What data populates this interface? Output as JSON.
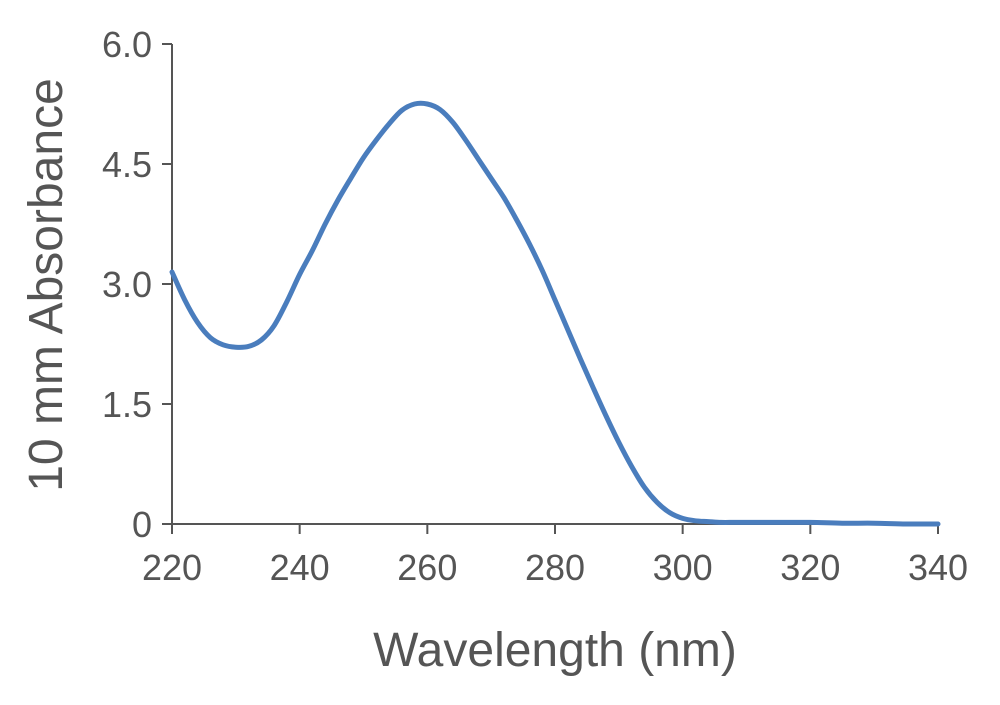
{
  "chart_data": {
    "type": "line",
    "title": "",
    "xlabel": "Wavelength (nm)",
    "ylabel": "10 mm Absorbance",
    "xlim": [
      220,
      340
    ],
    "ylim": [
      0,
      6.0
    ],
    "x_ticks": [
      220,
      240,
      260,
      280,
      300,
      320,
      340
    ],
    "x_tick_labels": [
      "220",
      "240",
      "260",
      "280",
      "300",
      "320",
      "340"
    ],
    "y_ticks": [
      0,
      1.5,
      3.0,
      4.5,
      6.0
    ],
    "y_tick_labels": [
      "0",
      "1.5",
      "3.0",
      "4.5",
      "6.0"
    ],
    "grid": false,
    "legend": "none",
    "colors": {
      "series": "#4a7dbd",
      "axis": "#555555",
      "text": "#555555"
    },
    "series": [
      {
        "x": [
          220,
          222,
          224,
          226,
          228,
          230,
          232,
          234,
          236,
          238,
          240,
          242,
          244,
          246,
          248,
          250,
          252,
          254,
          256,
          258,
          260,
          262,
          264,
          266,
          268,
          270,
          272,
          274,
          276,
          278,
          280,
          282,
          284,
          286,
          288,
          290,
          292,
          294,
          296,
          298,
          300,
          302,
          304,
          306,
          308,
          310,
          315,
          320,
          325,
          330,
          335,
          340
        ],
        "y": [
          3.15,
          2.8,
          2.52,
          2.33,
          2.24,
          2.21,
          2.22,
          2.3,
          2.48,
          2.78,
          3.12,
          3.42,
          3.75,
          4.05,
          4.32,
          4.58,
          4.8,
          5.0,
          5.17,
          5.25,
          5.25,
          5.18,
          5.02,
          4.8,
          4.56,
          4.32,
          4.08,
          3.8,
          3.5,
          3.17,
          2.8,
          2.43,
          2.06,
          1.7,
          1.35,
          1.02,
          0.72,
          0.46,
          0.27,
          0.14,
          0.07,
          0.04,
          0.03,
          0.02,
          0.02,
          0.02,
          0.02,
          0.02,
          0.01,
          0.01,
          0.0,
          0.0
        ]
      }
    ]
  }
}
